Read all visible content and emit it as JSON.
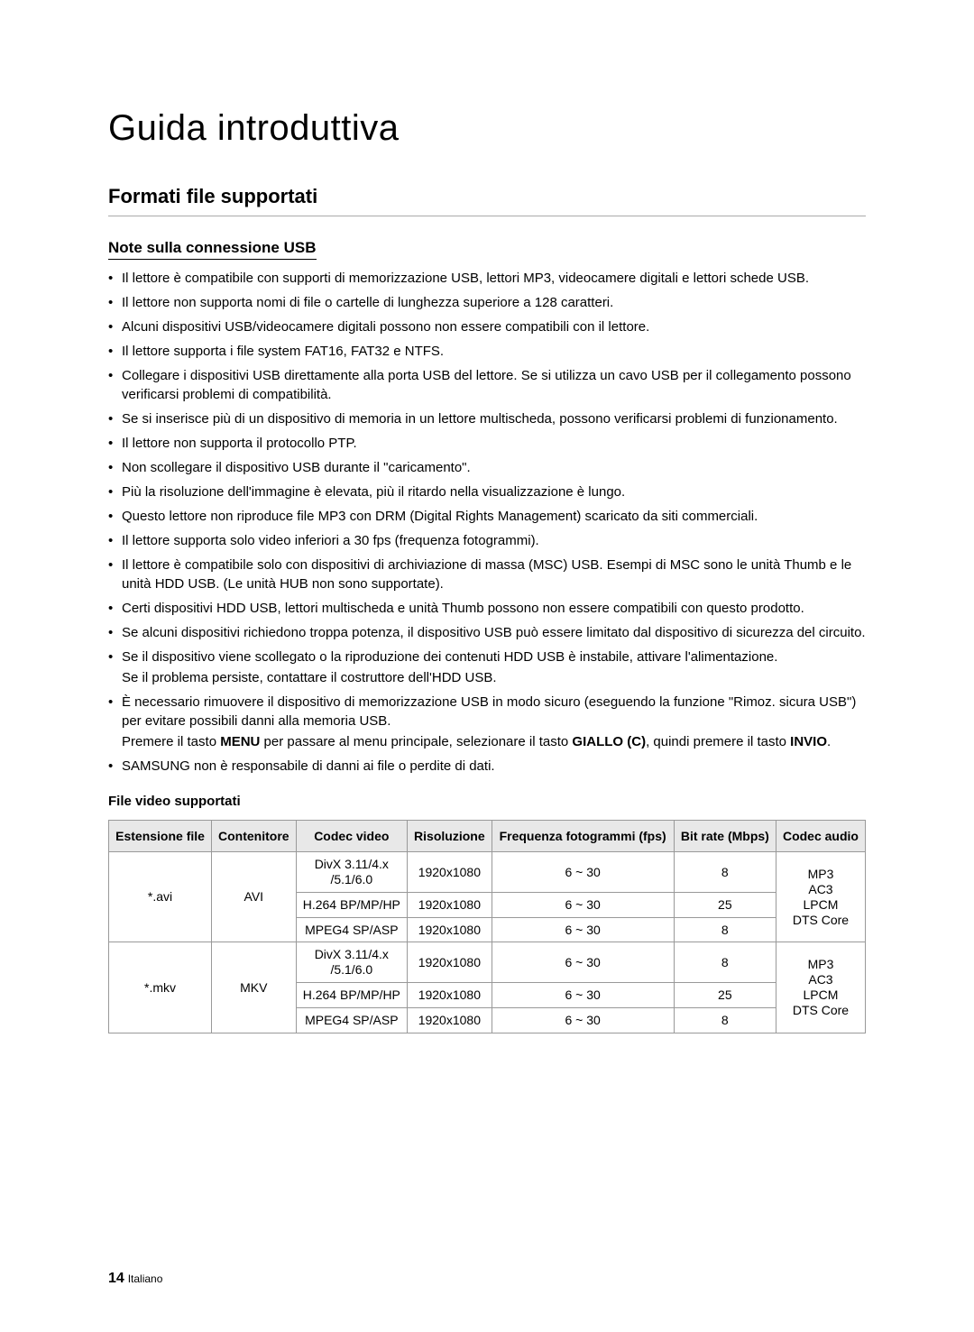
{
  "page": {
    "title": "Guida introduttiva",
    "section_title": "Formati file supportati",
    "subsection_title": "Note sulla connessione USB",
    "video_header": "File video supportati",
    "page_number": "14",
    "language": "Italiano"
  },
  "bullets": [
    "Il lettore è compatibile con supporti di memorizzazione USB, lettori MP3, videocamere digitali e lettori schede USB.",
    "Il lettore non supporta nomi di file o cartelle di lunghezza superiore a 128 caratteri.",
    "Alcuni dispositivi USB/videocamere digitali possono non essere compatibili con il lettore.",
    "Il lettore supporta i file system FAT16, FAT32 e NTFS.",
    "Collegare i dispositivi USB direttamente alla porta USB del lettore. Se si utilizza un cavo USB per il collegamento possono verificarsi problemi di compatibilità.",
    "Se si inserisce più di un dispositivo di memoria in un lettore multischeda, possono verificarsi problemi di funzionamento.",
    "Il lettore non supporta il protocollo PTP.",
    "Non scollegare il dispositivo USB durante il \"caricamento\".",
    "Più la risoluzione dell'immagine è elevata, più il ritardo nella visualizzazione è lungo.",
    "Questo lettore non riproduce file MP3 con DRM (Digital Rights Management) scaricato da siti commerciali.",
    "Il lettore supporta solo video inferiori a 30 fps (frequenza fotogrammi).",
    "Il lettore è compatibile solo con dispositivi di archiviazione di massa (MSC) USB. Esempi di MSC sono le unità Thumb e le unità HDD USB. (Le unità HUB non sono supportate).",
    "Certi dispositivi HDD USB, lettori multischeda e unità Thumb possono non essere compatibili con questo prodotto.",
    "Se alcuni dispositivi richiedono troppa potenza, il dispositivo USB può essere limitato dal dispositivo di sicurezza del circuito."
  ],
  "bullet15": {
    "line1": "Se il dispositivo viene scollegato o la riproduzione dei contenuti HDD USB è instabile, attivare l'alimentazione.",
    "line2": "Se il problema persiste, contattare il costruttore dell'HDD USB."
  },
  "bullet16": {
    "part1": "È necessario rimuovere il dispositivo di memorizzazione USB in modo sicuro (eseguendo la funzione \"Rimoz. sicura USB\") per evitare possibili danni alla memoria USB.",
    "part2a": "Premere il tasto ",
    "part2b": "MENU",
    "part2c": " per passare al menu principale, selezionare il tasto ",
    "part2d": "GIALLO (C)",
    "part2e": ", quindi premere il tasto ",
    "part2f": "INVIO",
    "part2g": "."
  },
  "bullet17": "SAMSUNG non è responsabile di danni ai file o perdite di dati.",
  "table": {
    "headers": [
      "Estensione file",
      "Contenitore",
      "Codec video",
      "Risoluzione",
      "Frequenza fotogrammi (fps)",
      "Bit rate (Mbps)",
      "Codec audio"
    ],
    "group1": {
      "ext": "*.avi",
      "container": "AVI",
      "audio": "MP3\nAC3\nLPCM\nDTS Core",
      "rows": [
        {
          "codec": "DivX 3.11/4.x\n/5.1/6.0",
          "res": "1920x1080",
          "fps": "6 ~ 30",
          "br": "8"
        },
        {
          "codec": "H.264 BP/MP/HP",
          "res": "1920x1080",
          "fps": "6 ~ 30",
          "br": "25"
        },
        {
          "codec": "MPEG4 SP/ASP",
          "res": "1920x1080",
          "fps": "6 ~ 30",
          "br": "8"
        }
      ]
    },
    "group2": {
      "ext": "*.mkv",
      "container": "MKV",
      "audio": "MP3\nAC3\nLPCM\nDTS Core",
      "rows": [
        {
          "codec": "DivX 3.11/4.x\n/5.1/6.0",
          "res": "1920x1080",
          "fps": "6 ~ 30",
          "br": "8"
        },
        {
          "codec": "H.264 BP/MP/HP",
          "res": "1920x1080",
          "fps": "6 ~ 30",
          "br": "25"
        },
        {
          "codec": "MPEG4 SP/ASP",
          "res": "1920x1080",
          "fps": "6 ~ 30",
          "br": "8"
        }
      ]
    }
  }
}
